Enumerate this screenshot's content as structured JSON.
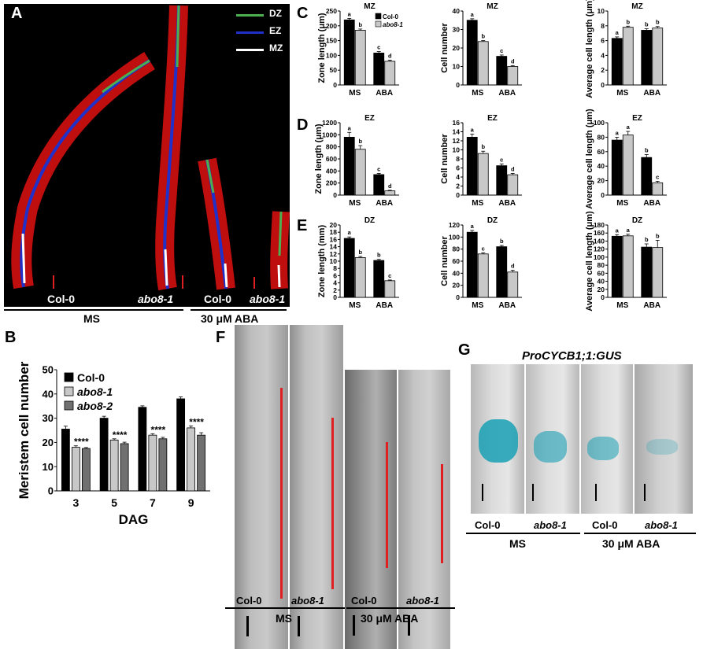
{
  "panels": {
    "A": {
      "letter": "A",
      "legend": [
        {
          "label": "DZ",
          "color": "#4caf50"
        },
        {
          "label": "EZ",
          "color": "#2030c8"
        },
        {
          "label": "MZ",
          "color": "#ffffff"
        }
      ],
      "sample_labels": [
        "Col-0",
        "abo8-1",
        "Col-0",
        "abo8-1"
      ],
      "group_labels": [
        "MS",
        "30 μM ABA"
      ]
    },
    "B": {
      "letter": "B"
    },
    "C": {
      "letter": "C"
    },
    "D": {
      "letter": "D"
    },
    "E": {
      "letter": "E"
    },
    "F": {
      "letter": "F",
      "sample_labels": [
        "Col-0",
        "abo8-1",
        "Col-0",
        "abo8-1"
      ],
      "group_labels": [
        "MS",
        "30 μM ABA"
      ]
    },
    "G": {
      "letter": "G",
      "title": "ProCYCB1;1:GUS",
      "sample_labels": [
        "Col-0",
        "abo8-1",
        "Col-0",
        "abo8-1"
      ],
      "group_labels": [
        "MS",
        "30 μM ABA"
      ]
    }
  },
  "colors": {
    "col0": "#000000",
    "abo81": "#c8c8c8",
    "abo82": "#707070",
    "root_red": "#e01010",
    "scale_red": "#e02020"
  },
  "chart_data": [
    {
      "id": "C1",
      "type": "bar",
      "title": "MZ",
      "ylabel": "Zone length (μm)",
      "categories": [
        "MS",
        "ABA"
      ],
      "ylim": [
        0,
        250
      ],
      "yticks": [
        0,
        50,
        100,
        150,
        200,
        250
      ],
      "series": [
        {
          "name": "Col-0",
          "values": [
            220,
            108
          ],
          "errors": [
            5,
            5
          ]
        },
        {
          "name": "abo8-1",
          "values": [
            185,
            80
          ],
          "errors": [
            4,
            4
          ]
        }
      ],
      "letters": [
        [
          "a",
          "c"
        ],
        [
          "b",
          "d"
        ]
      ],
      "legend": "top-right"
    },
    {
      "id": "C2",
      "type": "bar",
      "title": "MZ",
      "ylabel": "Cell number",
      "categories": [
        "MS",
        "ABA"
      ],
      "ylim": [
        0,
        40
      ],
      "yticks": [
        0,
        10,
        20,
        30,
        40
      ],
      "series": [
        {
          "values": [
            35,
            15.5
          ],
          "errors": [
            0.8,
            0.7
          ]
        },
        {
          "values": [
            23.5,
            10
          ],
          "errors": [
            0.5,
            0.5
          ]
        }
      ],
      "letters": [
        [
          "a",
          "c"
        ],
        [
          "b",
          "d"
        ]
      ]
    },
    {
      "id": "C3",
      "type": "bar",
      "title": "MZ",
      "ylabel": "Average cell length (μm)",
      "categories": [
        "MS",
        "ABA"
      ],
      "ylim": [
        0,
        10
      ],
      "yticks": [
        0,
        2,
        4,
        6,
        8,
        10
      ],
      "series": [
        {
          "values": [
            6.3,
            7.4
          ],
          "errors": [
            0.2,
            0.2
          ]
        },
        {
          "values": [
            7.8,
            7.7
          ],
          "errors": [
            0.15,
            0.2
          ]
        }
      ],
      "letters": [
        [
          "a",
          "b"
        ],
        [
          "b",
          "b"
        ]
      ]
    },
    {
      "id": "D1",
      "type": "bar",
      "title": "EZ",
      "ylabel": "Zone length (μm)",
      "categories": [
        "MS",
        "ABA"
      ],
      "ylim": [
        0,
        1200
      ],
      "yticks": [
        0,
        200,
        400,
        600,
        800,
        1000,
        1200
      ],
      "series": [
        {
          "values": [
            960,
            340
          ],
          "errors": [
            80,
            20
          ]
        },
        {
          "values": [
            760,
            70
          ],
          "errors": [
            60,
            10
          ]
        }
      ],
      "letters": [
        [
          "a",
          "c"
        ],
        [
          "b",
          "d"
        ]
      ]
    },
    {
      "id": "D2",
      "type": "bar",
      "title": "EZ",
      "ylabel": "Cell number",
      "categories": [
        "MS",
        "ABA"
      ],
      "ylim": [
        0,
        16
      ],
      "yticks": [
        0,
        2,
        4,
        6,
        8,
        10,
        12,
        14,
        16
      ],
      "series": [
        {
          "values": [
            12.8,
            6.5
          ],
          "errors": [
            0.7,
            0.4
          ]
        },
        {
          "values": [
            9.2,
            4.5
          ],
          "errors": [
            0.5,
            0.3
          ]
        }
      ],
      "letters": [
        [
          "a",
          "c"
        ],
        [
          "b",
          "d"
        ]
      ]
    },
    {
      "id": "D3",
      "type": "bar",
      "title": "EZ",
      "ylabel": "Average cell length (μm)",
      "categories": [
        "MS",
        "ABA"
      ],
      "ylim": [
        0,
        100
      ],
      "yticks": [
        0,
        20,
        40,
        60,
        80,
        100
      ],
      "series": [
        {
          "values": [
            76,
            52
          ],
          "errors": [
            4,
            4
          ]
        },
        {
          "values": [
            83,
            17
          ],
          "errors": [
            5,
            2
          ]
        }
      ],
      "letters": [
        [
          "a",
          "b"
        ],
        [
          "a",
          "c"
        ]
      ]
    },
    {
      "id": "E1",
      "type": "bar",
      "title": "DZ",
      "ylabel": "Zone length (mm)",
      "categories": [
        "MS",
        "ABA"
      ],
      "ylim": [
        0,
        20
      ],
      "yticks": [
        0,
        2,
        4,
        6,
        8,
        10,
        12,
        14,
        16,
        18,
        20
      ],
      "series": [
        {
          "values": [
            16.3,
            10.2
          ],
          "errors": [
            0.4,
            0.3
          ]
        },
        {
          "values": [
            11,
            4.6
          ],
          "errors": [
            0.3,
            0.2
          ]
        }
      ],
      "letters": [
        [
          "a",
          "b"
        ],
        [
          "b",
          "c"
        ]
      ]
    },
    {
      "id": "E2",
      "type": "bar",
      "title": "DZ",
      "ylabel": "Cell number",
      "categories": [
        "MS",
        "ABA"
      ],
      "ylim": [
        0,
        120
      ],
      "yticks": [
        0,
        20,
        40,
        60,
        80,
        100,
        120
      ],
      "series": [
        {
          "values": [
            108,
            84
          ],
          "errors": [
            3,
            2
          ]
        },
        {
          "values": [
            72,
            42
          ],
          "errors": [
            2,
            3
          ]
        }
      ],
      "letters": [
        [
          "a",
          "b"
        ],
        [
          "c",
          "d"
        ]
      ]
    },
    {
      "id": "E3",
      "type": "bar",
      "title": "DZ",
      "ylabel": "Average cell length (μm)",
      "categories": [
        "MS",
        "ABA"
      ],
      "ylim": [
        0,
        180
      ],
      "yticks": [
        0,
        20,
        40,
        60,
        80,
        100,
        120,
        140,
        160,
        180
      ],
      "series": [
        {
          "values": [
            152,
            125
          ],
          "errors": [
            4,
            8
          ]
        },
        {
          "values": [
            153,
            124
          ],
          "errors": [
            4,
            18
          ]
        }
      ],
      "letters": [
        [
          "a",
          "b"
        ],
        [
          "a",
          "b"
        ]
      ]
    },
    {
      "id": "B",
      "type": "bar",
      "title": "",
      "ylabel": "Meristem cell number",
      "xlabel": "DAG",
      "categories": [
        "3",
        "5",
        "7",
        "9"
      ],
      "ylim": [
        0,
        50
      ],
      "yticks": [
        0,
        10,
        20,
        30,
        40,
        50
      ],
      "series": [
        {
          "name": "Col-0",
          "values": [
            25.5,
            30,
            34.5,
            38
          ],
          "errors": [
            1.2,
            0.8,
            0.6,
            0.8
          ]
        },
        {
          "name": "abo8-1",
          "values": [
            18,
            21,
            23,
            26
          ],
          "errors": [
            0.6,
            0.5,
            0.6,
            0.8
          ]
        },
        {
          "name": "abo8-2",
          "values": [
            17.5,
            19.5,
            21.5,
            23
          ],
          "errors": [
            0.4,
            0.6,
            0.6,
            1.0
          ]
        }
      ],
      "annotations": [
        "****",
        "****",
        "****",
        "****"
      ],
      "legend": "top-left"
    }
  ]
}
